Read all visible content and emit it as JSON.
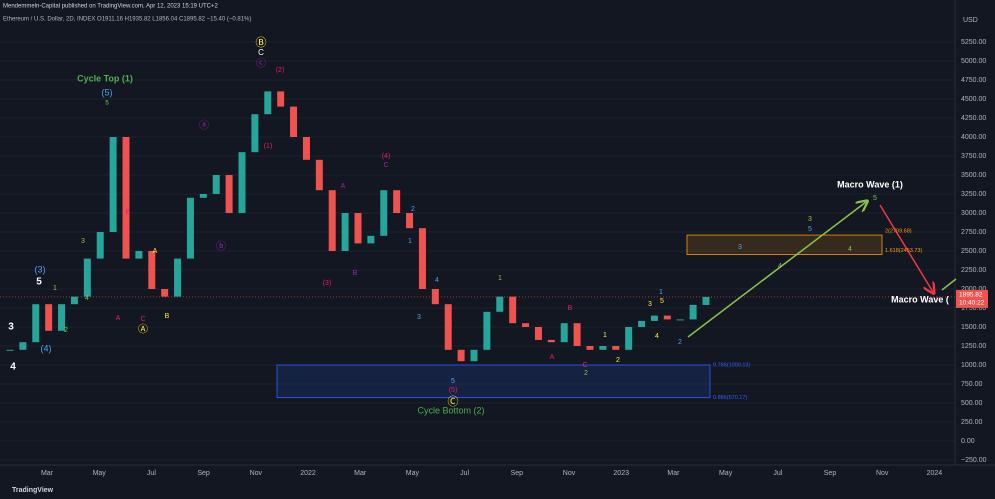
{
  "header": {
    "publisher": "Mendemmeln-Capital published on TradingView.com, Apr 12, 2023 15:19 UTC+2",
    "symbol": "Ethereum / U.S. Dollar, 2D, INDEX O1911.16 H1935.82 L1856.04 C1895.82 −15.40 (−0.81%)"
  },
  "footer": "TradingView",
  "chart_data": {
    "type": "candlestick",
    "y_label": "USD",
    "values": [
      1200,
      1300,
      1800,
      1450,
      1800,
      1900,
      2400,
      2750,
      4000,
      2400,
      2500,
      2000,
      1900,
      2400,
      3200,
      3250,
      3500,
      3000,
      3800,
      4300,
      4600,
      4400,
      4000,
      3700,
      3300,
      2500,
      3000,
      2600,
      2700,
      3300,
      3000,
      2800,
      2000,
      1800,
      1200,
      1050,
      1200,
      1700,
      1900,
      1550,
      1500,
      1330,
      1300,
      1550,
      1250,
      1200,
      1250,
      1200,
      1500,
      1580,
      1650,
      1600,
      1600,
      1790,
      1895.82
    ],
    "up_color": "#26a69a",
    "down_color": "#ef5350",
    "last_price": {
      "value": 1895.82,
      "label": "1895.82",
      "countdown": "10:40:22"
    },
    "ylim": [
      -250,
      5250
    ],
    "yticks": [
      {
        "value": -250,
        "label": "−250.00"
      },
      {
        "value": 0,
        "label": "0.00"
      },
      {
        "value": 250,
        "label": "250.00"
      },
      {
        "value": 500,
        "label": "500.00"
      },
      {
        "value": 750,
        "label": "750.00"
      },
      {
        "value": 1000,
        "label": "1000.00"
      },
      {
        "value": 1250,
        "label": "1250.00"
      },
      {
        "value": 1500,
        "label": "1500.00"
      },
      {
        "value": 1750,
        "label": "1750.00"
      },
      {
        "value": 2000,
        "label": "2000.00"
      },
      {
        "value": 2250,
        "label": "2250.00"
      },
      {
        "value": 2500,
        "label": "2500.00"
      },
      {
        "value": 2750,
        "label": "2750.00"
      },
      {
        "value": 3000,
        "label": "3000.00"
      },
      {
        "value": 3250,
        "label": "3250.00"
      },
      {
        "value": 3500,
        "label": "3500.00"
      },
      {
        "value": 3750,
        "label": "3750.00"
      },
      {
        "value": 4000,
        "label": "4000.00"
      },
      {
        "value": 4250,
        "label": "4250.00"
      },
      {
        "value": 4500,
        "label": "4500.00"
      },
      {
        "value": 4750,
        "label": "4750.00"
      },
      {
        "value": 5000,
        "label": "5000.00"
      },
      {
        "value": 5250,
        "label": "5250.00"
      }
    ],
    "x_labels": [
      "Mar",
      "May",
      "Jul",
      "Sep",
      "Nov",
      "2022",
      "Mar",
      "May",
      "Jul",
      "Sep",
      "Nov",
      "2023",
      "Mar",
      "May",
      "Jul",
      "Sep",
      "Nov",
      "2024"
    ],
    "zones": [
      {
        "top": 1000.13,
        "bottom": 570.17,
        "labels": [
          {
            "value": 1000.13,
            "label": "0.786(1000.13)"
          },
          {
            "value": 570.17,
            "label": "0.886(570.17)"
          }
        ],
        "color": "#2962ff"
      },
      {
        "top": 2709.68,
        "bottom": 2453.73,
        "labels": [
          {
            "value": 2709.68,
            "label": "2(2709.68)"
          },
          {
            "value": 2453.73,
            "label": "1.618(2453.73)"
          }
        ],
        "color": "#ff9800"
      }
    ],
    "annotations": [
      {
        "text": "Cycle Top (1)",
        "color": "#4caf50"
      },
      {
        "text": "(5)",
        "color": "#42a5f5"
      },
      {
        "text": "5",
        "color": "#8bc34a"
      },
      {
        "text": "3",
        "color": "#ffffff"
      },
      {
        "text": "4",
        "color": "#ffffff"
      },
      {
        "text": "(3)",
        "color": "#42a5f5"
      },
      {
        "text": "5",
        "color": "#ffffff"
      },
      {
        "text": "(4)",
        "color": "#42a5f5"
      },
      {
        "text": "1",
        "color": "#8bc34a"
      },
      {
        "text": "2",
        "color": "#8bc34a"
      },
      {
        "text": "3",
        "color": "#8bc34a"
      },
      {
        "text": "4",
        "color": "#8bc34a"
      },
      {
        "text": "A",
        "color": "#e91e63"
      },
      {
        "text": "B",
        "color": "#e91e63"
      },
      {
        "text": "C",
        "color": "#e91e63"
      },
      {
        "text": "Ⓐ",
        "color": "#ffeb3b"
      },
      {
        "text": "A",
        "color": "#ffeb3b"
      },
      {
        "text": "B",
        "color": "#ffeb3b"
      },
      {
        "text": "ⓐ",
        "color": "#9c27b0"
      },
      {
        "text": "ⓑ",
        "color": "#9c27b0"
      },
      {
        "text": "ⓒ",
        "color": "#9c27b0"
      },
      {
        "text": "Ⓑ",
        "color": "#ffeb3b"
      },
      {
        "text": "C",
        "color": "#ffffff"
      },
      {
        "text": "(2)",
        "color": "#e91e63"
      },
      {
        "text": "(1)",
        "color": "#e91e63"
      },
      {
        "text": "(3)",
        "color": "#e91e63"
      },
      {
        "text": "(4)",
        "color": "#e91e63"
      },
      {
        "text": "C",
        "color": "#9c27b0"
      },
      {
        "text": "A",
        "color": "#9c27b0"
      },
      {
        "text": "B",
        "color": "#9c27b0"
      },
      {
        "text": "2",
        "color": "#42a5f5"
      },
      {
        "text": "1",
        "color": "#42a5f5"
      },
      {
        "text": "3",
        "color": "#42a5f5"
      },
      {
        "text": "4",
        "color": "#42a5f5"
      },
      {
        "text": "5",
        "color": "#42a5f5"
      },
      {
        "text": "(5)",
        "color": "#e91e63"
      },
      {
        "text": "Ⓒ",
        "color": "#ffeb3b"
      },
      {
        "text": "Cycle Bottom (2)",
        "color": "#4caf50"
      },
      {
        "text": "1",
        "color": "#8bc34a"
      },
      {
        "text": "2",
        "color": "#8bc34a"
      },
      {
        "text": "B",
        "color": "#e91e63"
      },
      {
        "text": "A",
        "color": "#e91e63"
      },
      {
        "text": "C",
        "color": "#e91e63"
      },
      {
        "text": "1",
        "color": "#ffeb3b"
      },
      {
        "text": "2",
        "color": "#ffeb3b"
      },
      {
        "text": "3",
        "color": "#ffeb3b"
      },
      {
        "text": "4",
        "color": "#ffeb3b"
      },
      {
        "text": "5",
        "color": "#ffeb3b"
      },
      {
        "text": "1",
        "color": "#42a5f5"
      },
      {
        "text": "2",
        "color": "#42a5f5"
      },
      {
        "text": "3",
        "color": "#42a5f5"
      },
      {
        "text": "4",
        "color": "#8bc34a"
      },
      {
        "text": "3",
        "color": "#8bc34a"
      },
      {
        "text": "5",
        "color": "#42a5f5"
      },
      {
        "text": "4",
        "color": "#8bc34a"
      },
      {
        "text": "5",
        "color": "#8bc34a"
      },
      {
        "text": "Macro Wave (1)",
        "color": "#ffffff"
      },
      {
        "text": "Macro Wave (",
        "color": "#ffffff"
      }
    ]
  }
}
